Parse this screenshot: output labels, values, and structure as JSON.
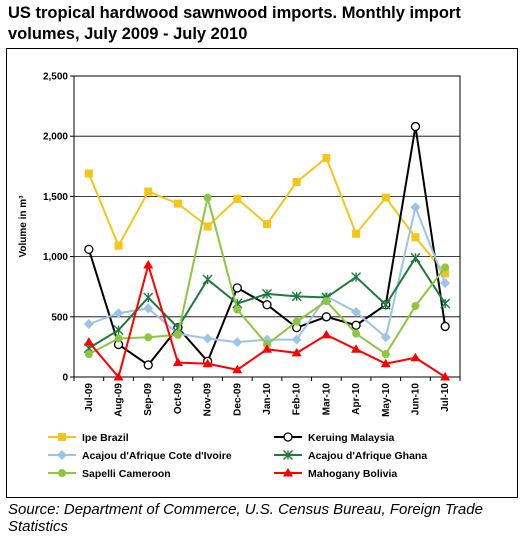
{
  "title": "US tropical hardwood sawnwood imports. Monthly import volumes, July 2009 - July 2010",
  "source": "Source: Department of Commerce, U.S. Census Bureau, Foreign Trade Statistics",
  "chart_data": {
    "type": "line",
    "title": "US tropical hardwood sawnwood imports. Monthly import volumes, July 2009 - July 2010",
    "xlabel": "",
    "ylabel": "Volume in m³",
    "ylim": [
      0,
      2500
    ],
    "yticks": [
      0,
      500,
      1000,
      1500,
      2000,
      2500
    ],
    "ytick_labels": [
      "0",
      "500",
      "1,000",
      "1,500",
      "2,000",
      "2,500"
    ],
    "grid": "horizontal",
    "legend_position": "bottom",
    "categories": [
      "Jul-09",
      "Aug-09",
      "Sep-09",
      "Oct-09",
      "Nov-09",
      "Dec-09",
      "Jan-10",
      "Feb-10",
      "Mar-10",
      "Apr-10",
      "May-10",
      "Jun-10",
      "Jul-10"
    ],
    "series": [
      {
        "name": "Ipe Brazil",
        "color": "#F5C518",
        "marker": "square",
        "values": [
          1690,
          1090,
          1540,
          1440,
          1250,
          1480,
          1270,
          1620,
          1820,
          1190,
          1490,
          1160,
          860
        ]
      },
      {
        "name": "Keruing Malaysia",
        "color": "#000000",
        "marker": "open-circle",
        "values": [
          1060,
          270,
          100,
          410,
          130,
          740,
          600,
          410,
          500,
          430,
          600,
          2080,
          420
        ]
      },
      {
        "name": "Acajou d'Afrique Cote d'Ivoire",
        "color": "#9DC3E6",
        "marker": "diamond",
        "values": [
          440,
          530,
          570,
          360,
          320,
          290,
          310,
          310,
          670,
          540,
          330,
          1410,
          780
        ]
      },
      {
        "name": "Acajou d'Afrique Ghana",
        "color": "#1E7B3A",
        "marker": "star",
        "values": [
          240,
          390,
          660,
          410,
          810,
          610,
          690,
          670,
          660,
          830,
          600,
          990,
          610
        ]
      },
      {
        "name": "Sapelli Cameroon",
        "color": "#8DC63F",
        "marker": "circle",
        "values": [
          190,
          320,
          330,
          350,
          1490,
          560,
          270,
          460,
          630,
          360,
          190,
          590,
          910
        ]
      },
      {
        "name": "Mahogany Bolivia",
        "color": "#FF0000",
        "marker": "triangle",
        "values": [
          290,
          0,
          930,
          120,
          110,
          60,
          230,
          200,
          350,
          230,
          110,
          160,
          0
        ]
      }
    ]
  }
}
